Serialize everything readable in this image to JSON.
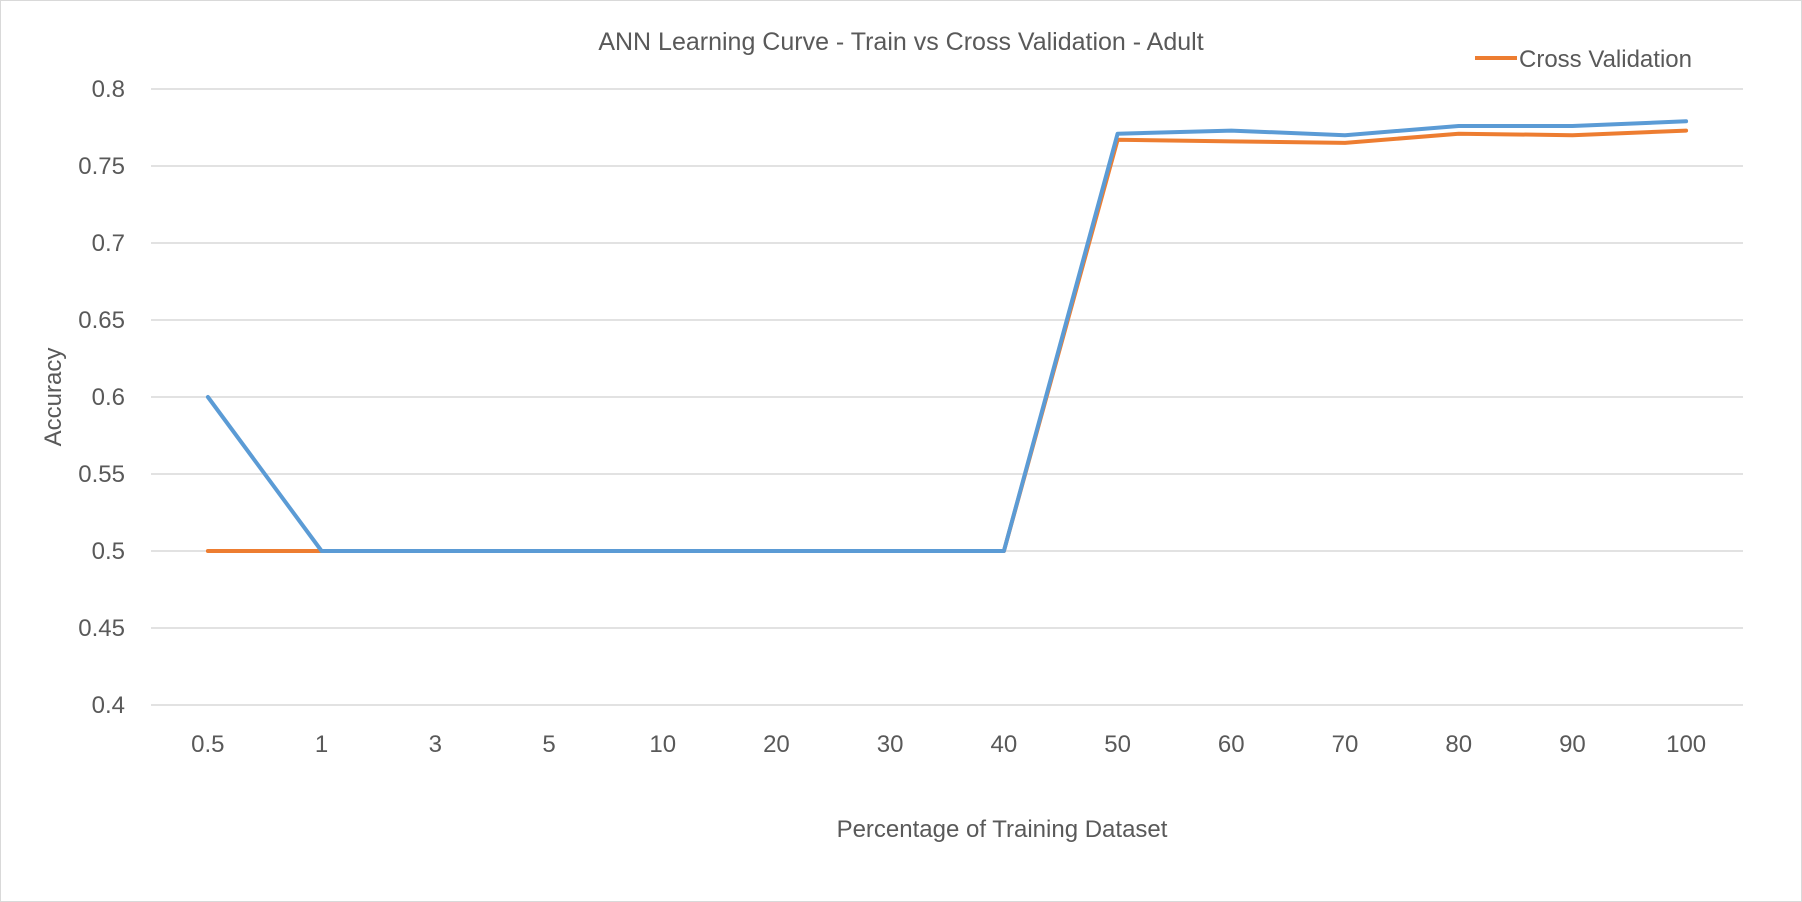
{
  "chart_data": {
    "type": "line",
    "title": "ANN Learning Curve - Train vs Cross Validation - Adult",
    "xlabel": "Percentage of Training Dataset",
    "ylabel": "Accuracy",
    "categories": [
      "0.5",
      "1",
      "3",
      "5",
      "10",
      "20",
      "30",
      "40",
      "50",
      "60",
      "70",
      "80",
      "90",
      "100"
    ],
    "ylim": [
      0.4,
      0.8
    ],
    "yticks": [
      "0.4",
      "0.45",
      "0.5",
      "0.55",
      "0.6",
      "0.65",
      "0.7",
      "0.75",
      "0.8"
    ],
    "grid": true,
    "legend": "top-right",
    "series": [
      {
        "color": "#5b9bd5",
        "values": [
          0.6,
          0.5,
          0.5,
          0.5,
          0.5,
          0.5,
          0.5,
          0.5,
          0.771,
          0.773,
          0.77,
          0.776,
          0.776,
          0.779
        ]
      },
      {
        "name": "Cross Validation",
        "color": "#ed7d31",
        "values": [
          0.5,
          0.5,
          0.5,
          0.5,
          0.5,
          0.5,
          0.5,
          0.5,
          0.767,
          0.766,
          0.765,
          0.771,
          0.77,
          0.773
        ]
      }
    ]
  }
}
